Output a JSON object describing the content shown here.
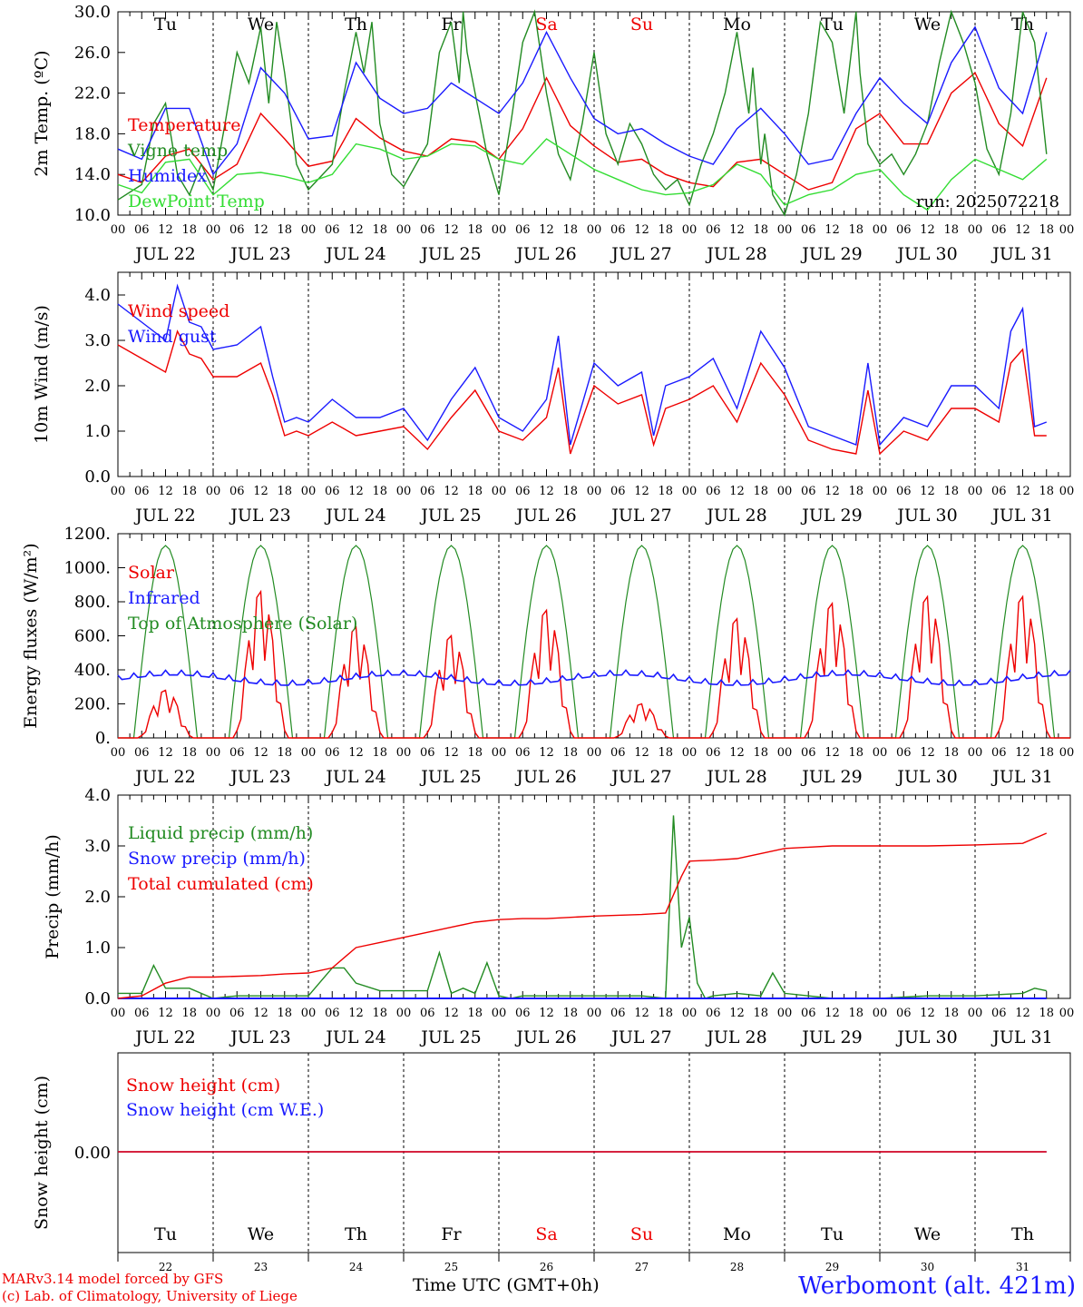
{
  "meta": {
    "run_label": "run: 2025072218",
    "model_credit": "MARv3.14 model forced by GFS",
    "lab_credit": "(c) Lab. of Climatology, University of Liege",
    "time_axis_title": "Time UTC (GMT+0h)",
    "station": "Werbomont (alt. 421m)"
  },
  "colors": {
    "red": "#ee0000",
    "green": "#228b22",
    "blue": "#1a1aff",
    "lightgreen": "#33dd33",
    "weekend": "#ee0000"
  },
  "days": {
    "weekdays": [
      "Tu",
      "We",
      "Th",
      "Fr",
      "Sa",
      "Su",
      "Mo",
      "Tu",
      "We",
      "Th"
    ],
    "weekend_flags": [
      false,
      false,
      false,
      false,
      true,
      true,
      false,
      false,
      false,
      false
    ],
    "dates": [
      "JUL 22",
      "JUL 23",
      "JUL 24",
      "JUL 25",
      "JUL 26",
      "JUL 27",
      "JUL 28",
      "JUL 29",
      "JUL 30",
      "JUL 31"
    ],
    "day_numbers": [
      "22",
      "23",
      "24",
      "25",
      "26",
      "27",
      "28",
      "29",
      "30",
      "31"
    ],
    "hour_labels": [
      "00",
      "06",
      "12",
      "18"
    ],
    "final_hour_label": "00"
  },
  "chart_data": [
    {
      "id": "temperature",
      "type": "line",
      "ylabel": "2m Temp. (ºC)",
      "ylim": [
        10,
        30
      ],
      "yticks": [
        "10.0",
        "14.0",
        "18.0",
        "22.0",
        "26.0",
        "30.0"
      ],
      "x_unit": "hours since JUL 22 00 UTC",
      "legend": [
        "Temperature",
        "Vigne temp",
        "Humidex",
        "DewPoint Temp"
      ],
      "series": [
        {
          "name": "Temperature",
          "color": "red",
          "x": [
            0,
            6,
            12,
            18,
            24,
            30,
            36,
            42,
            48,
            54,
            60,
            66,
            72,
            78,
            84,
            90,
            96,
            102,
            108,
            114,
            120,
            126,
            132,
            138,
            144,
            150,
            156,
            162,
            168,
            174,
            180,
            186,
            192,
            198,
            204,
            210,
            216,
            222,
            228,
            234
          ],
          "values": [
            14.0,
            13.2,
            15.8,
            16.5,
            13.5,
            15.0,
            20.0,
            17.5,
            14.8,
            15.3,
            19.5,
            17.6,
            16.3,
            15.8,
            17.5,
            17.2,
            15.5,
            18.5,
            23.5,
            18.8,
            16.8,
            15.2,
            15.5,
            14.0,
            13.2,
            12.8,
            15.2,
            15.5,
            14.0,
            12.5,
            13.2,
            18.5,
            20.0,
            17.0,
            17.0,
            22.0,
            24.0,
            19.0,
            16.8,
            23.5
          ]
        },
        {
          "name": "Vigne temp",
          "color": "green",
          "x": [
            0,
            6,
            9,
            12,
            15,
            18,
            21,
            24,
            27,
            30,
            33,
            36,
            38,
            40,
            42,
            45,
            48,
            54,
            57,
            60,
            62,
            64,
            66,
            69,
            72,
            78,
            81,
            84,
            86,
            87,
            88,
            90,
            93,
            96,
            99,
            102,
            105,
            108,
            111,
            114,
            117,
            120,
            123,
            126,
            129,
            132,
            135,
            138,
            141,
            144,
            147,
            150,
            153,
            156,
            159,
            160,
            162,
            163,
            165,
            168,
            171,
            174,
            177,
            180,
            183,
            186,
            187,
            189,
            192,
            195,
            198,
            201,
            204,
            207,
            210,
            213,
            216,
            219,
            222,
            225,
            228,
            231,
            234
          ],
          "values": [
            11.5,
            13.0,
            19.0,
            21.0,
            14.0,
            12.0,
            15.0,
            12.5,
            19.0,
            26.0,
            23.0,
            28.5,
            21.0,
            29.0,
            24.0,
            15.0,
            12.5,
            15.0,
            22.0,
            28.0,
            24.0,
            29.0,
            19.0,
            14.0,
            12.8,
            17.0,
            26.0,
            29.0,
            23.0,
            30.5,
            26.0,
            22.0,
            16.0,
            12.0,
            19.0,
            27.0,
            30.0,
            22.0,
            16.0,
            13.5,
            19.0,
            26.0,
            18.0,
            15.0,
            19.0,
            17.0,
            14.0,
            12.5,
            13.5,
            11.0,
            15.0,
            18.0,
            22.0,
            28.0,
            20.0,
            24.5,
            15.0,
            18.0,
            12.0,
            10.0,
            14.0,
            20.0,
            29.0,
            27.0,
            20.0,
            30.0,
            24.0,
            17.0,
            15.0,
            16.0,
            14.0,
            16.0,
            19.0,
            25.0,
            30.0,
            27.0,
            23.0,
            16.5,
            14.0,
            20.0,
            30.0,
            27.0,
            16.0
          ]
        },
        {
          "name": "Humidex",
          "color": "blue",
          "x": [
            0,
            6,
            12,
            18,
            24,
            30,
            36,
            42,
            48,
            54,
            60,
            66,
            72,
            78,
            84,
            90,
            96,
            102,
            108,
            114,
            120,
            126,
            132,
            138,
            144,
            150,
            156,
            162,
            168,
            174,
            180,
            186,
            192,
            198,
            204,
            210,
            216,
            222,
            228,
            234
          ],
          "values": [
            16.5,
            15.5,
            20.5,
            20.5,
            14.0,
            17.0,
            24.5,
            22.0,
            17.5,
            17.8,
            25.0,
            21.5,
            20.0,
            20.5,
            23.0,
            21.5,
            20.0,
            23.0,
            28.0,
            23.5,
            19.5,
            18.0,
            18.5,
            17.0,
            15.8,
            15.0,
            18.5,
            20.5,
            18.0,
            15.0,
            15.5,
            20.0,
            23.5,
            21.0,
            19.0,
            25.0,
            28.5,
            22.5,
            20.0,
            28.0
          ]
        },
        {
          "name": "DewPoint Temp",
          "color": "lightgreen",
          "x": [
            0,
            6,
            12,
            18,
            24,
            30,
            36,
            42,
            48,
            54,
            60,
            66,
            72,
            78,
            84,
            90,
            96,
            102,
            108,
            114,
            120,
            126,
            132,
            138,
            144,
            150,
            156,
            162,
            168,
            174,
            180,
            186,
            192,
            198,
            204,
            210,
            216,
            222,
            228,
            234
          ],
          "values": [
            13.0,
            12.2,
            15.2,
            15.5,
            12.0,
            14.0,
            14.2,
            13.8,
            13.2,
            14.0,
            17.0,
            16.5,
            15.5,
            15.8,
            17.0,
            16.8,
            15.5,
            15.0,
            17.5,
            16.0,
            14.5,
            13.5,
            12.5,
            12.0,
            12.2,
            13.0,
            15.0,
            14.0,
            11.0,
            12.0,
            12.5,
            14.0,
            14.5,
            12.0,
            10.5,
            13.5,
            15.5,
            14.5,
            13.5,
            15.5
          ]
        }
      ]
    },
    {
      "id": "wind",
      "type": "line",
      "ylabel": "10m Wind (m/s)",
      "ylim": [
        0,
        4.5
      ],
      "yticks": [
        "0.0",
        "1.0",
        "2.0",
        "3.0",
        "4.0"
      ],
      "legend": [
        "Wind speed",
        "Wind gust"
      ],
      "series": [
        {
          "name": "Wind speed",
          "color": "red",
          "x": [
            0,
            6,
            12,
            15,
            18,
            21,
            24,
            30,
            36,
            39,
            42,
            45,
            48,
            54,
            60,
            66,
            72,
            78,
            84,
            90,
            96,
            102,
            108,
            111,
            114,
            120,
            126,
            132,
            135,
            138,
            144,
            150,
            156,
            162,
            168,
            174,
            180,
            186,
            189,
            192,
            198,
            204,
            210,
            216,
            222,
            225,
            228,
            231,
            234
          ],
          "values": [
            2.9,
            2.6,
            2.3,
            3.2,
            2.7,
            2.6,
            2.2,
            2.2,
            2.5,
            1.8,
            0.9,
            1.0,
            0.9,
            1.2,
            0.9,
            1.0,
            1.1,
            0.6,
            1.3,
            1.9,
            1.0,
            0.8,
            1.3,
            2.4,
            0.5,
            2.0,
            1.6,
            1.8,
            0.7,
            1.5,
            1.7,
            2.0,
            1.2,
            2.5,
            1.8,
            0.8,
            0.6,
            0.5,
            1.9,
            0.5,
            1.0,
            0.8,
            1.5,
            1.5,
            1.2,
            2.5,
            2.8,
            0.9,
            0.9
          ]
        },
        {
          "name": "Wind gust",
          "color": "blue",
          "x": [
            0,
            6,
            12,
            15,
            18,
            21,
            24,
            30,
            36,
            39,
            42,
            45,
            48,
            54,
            60,
            66,
            72,
            78,
            84,
            90,
            96,
            102,
            108,
            111,
            114,
            120,
            126,
            132,
            135,
            138,
            144,
            150,
            156,
            162,
            168,
            174,
            180,
            186,
            189,
            192,
            198,
            204,
            210,
            216,
            222,
            225,
            228,
            231,
            234
          ],
          "values": [
            3.8,
            3.4,
            3.0,
            4.2,
            3.4,
            3.3,
            2.8,
            2.9,
            3.3,
            2.2,
            1.2,
            1.3,
            1.2,
            1.7,
            1.3,
            1.3,
            1.5,
            0.8,
            1.7,
            2.4,
            1.3,
            1.0,
            1.7,
            3.1,
            0.7,
            2.5,
            2.0,
            2.3,
            0.9,
            2.0,
            2.2,
            2.6,
            1.5,
            3.2,
            2.4,
            1.1,
            0.9,
            0.7,
            2.5,
            0.7,
            1.3,
            1.1,
            2.0,
            2.0,
            1.5,
            3.2,
            3.7,
            1.1,
            1.2
          ]
        }
      ]
    },
    {
      "id": "energy",
      "type": "line",
      "ylabel": "Energy fluxes (W/m²)",
      "ylim": [
        0,
        1200
      ],
      "yticks": [
        "0.",
        "200.",
        "400.",
        "600.",
        "800.",
        "1000.",
        "1200."
      ],
      "legend": [
        "Solar",
        "Infrared",
        "Top of Atmosphere (Solar)"
      ],
      "toa_peak": 1130,
      "solar_peaks": [
        280,
        860,
        650,
        600,
        750,
        200,
        700,
        790,
        830,
        830
      ],
      "infrared_level": 350,
      "series_names": [
        "Solar",
        "Infrared",
        "Top of Atmosphere (Solar)"
      ]
    },
    {
      "id": "precip",
      "type": "line",
      "ylabel": "Precip (mm/h)",
      "ylim": [
        0,
        4.0
      ],
      "yticks": [
        "0.0",
        "1.0",
        "2.0",
        "3.0",
        "4.0"
      ],
      "legend": [
        "Liquid precip (mm/h)",
        "Snow precip (mm/h)",
        "Total cumulated (cm)"
      ],
      "series": [
        {
          "name": "Liquid precip (mm/h)",
          "color": "green",
          "x": [
            0,
            6,
            9,
            12,
            18,
            24,
            30,
            36,
            42,
            48,
            54,
            57,
            60,
            66,
            72,
            78,
            81,
            84,
            87,
            90,
            93,
            96,
            99,
            102,
            108,
            120,
            132,
            138,
            140,
            142,
            144,
            146,
            148,
            150,
            156,
            162,
            165,
            168,
            174,
            180,
            192,
            204,
            216,
            228,
            231,
            234
          ],
          "values": [
            0.1,
            0.1,
            0.65,
            0.2,
            0.2,
            0.0,
            0.05,
            0.05,
            0.05,
            0.05,
            0.6,
            0.6,
            0.3,
            0.15,
            0.15,
            0.15,
            0.9,
            0.1,
            0.2,
            0.1,
            0.7,
            0.05,
            0.0,
            0.05,
            0.05,
            0.05,
            0.05,
            0.0,
            3.6,
            1.0,
            1.6,
            0.3,
            0.0,
            0.05,
            0.1,
            0.05,
            0.5,
            0.1,
            0.05,
            0.0,
            0.0,
            0.05,
            0.05,
            0.1,
            0.2,
            0.15
          ]
        },
        {
          "name": "Snow precip (mm/h)",
          "color": "blue",
          "x": [
            0,
            234
          ],
          "values": [
            0,
            0
          ]
        },
        {
          "name": "Total cumulated (cm)",
          "color": "red",
          "x": [
            0,
            6,
            12,
            18,
            24,
            36,
            42,
            48,
            54,
            60,
            66,
            72,
            78,
            84,
            90,
            96,
            102,
            108,
            120,
            132,
            138,
            142,
            144,
            150,
            156,
            162,
            168,
            180,
            192,
            204,
            216,
            228,
            234
          ],
          "values": [
            0.0,
            0.05,
            0.3,
            0.42,
            0.42,
            0.45,
            0.48,
            0.5,
            0.6,
            1.0,
            1.1,
            1.2,
            1.3,
            1.4,
            1.5,
            1.55,
            1.57,
            1.57,
            1.62,
            1.65,
            1.68,
            2.4,
            2.7,
            2.72,
            2.75,
            2.85,
            2.95,
            3.0,
            3.0,
            3.0,
            3.02,
            3.05,
            3.25
          ]
        }
      ]
    },
    {
      "id": "snow",
      "type": "line",
      "ylabel": "Snow height (cm)",
      "yticks": [
        "0.00"
      ],
      "legend": [
        "Snow height (cm)",
        "Snow height (cm W.E.)"
      ],
      "series": [
        {
          "name": "Snow height (cm)",
          "color": "red",
          "x": [
            0,
            234
          ],
          "values": [
            0,
            0
          ]
        },
        {
          "name": "Snow height (cm W.E.)",
          "color": "blue",
          "x": [
            0,
            234
          ],
          "values": [
            0,
            0
          ]
        }
      ]
    }
  ]
}
